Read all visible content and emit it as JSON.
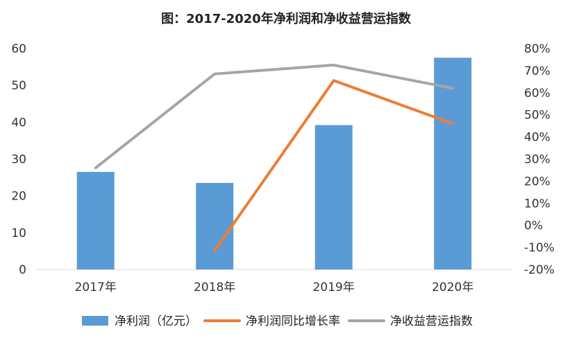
{
  "chart_data": {
    "type": "bar",
    "title": "图：2017-2020年净利润和净收益营运指数",
    "categories": [
      "2017年",
      "2018年",
      "2019年",
      "2020年"
    ],
    "y_left": {
      "min": 0,
      "max": 60,
      "ticks": [
        "0",
        "10",
        "20",
        "30",
        "40",
        "50",
        "60"
      ]
    },
    "y_right": {
      "min": -20,
      "max": 80,
      "ticks": [
        "-20%",
        "-10%",
        "0%",
        "10%",
        "20%",
        "30%",
        "40%",
        "50%",
        "60%",
        "70%",
        "80%"
      ]
    },
    "series": [
      {
        "name": "净利润（亿元）",
        "type": "bar",
        "axis": "left",
        "color": "#5b9bd5",
        "values": [
          26.5,
          23.5,
          39.2,
          57.5
        ]
      },
      {
        "name": "净利润同比增长率",
        "type": "line",
        "axis": "right",
        "color": "#ed7d31",
        "values": [
          null,
          -11.5,
          65.5,
          46
        ]
      },
      {
        "name": "净收益营运指数",
        "type": "line",
        "axis": "right",
        "color": "#a5a5a5",
        "values": [
          26,
          68.5,
          72.5,
          62
        ]
      }
    ],
    "legend_position": "bottom",
    "grid": false
  }
}
